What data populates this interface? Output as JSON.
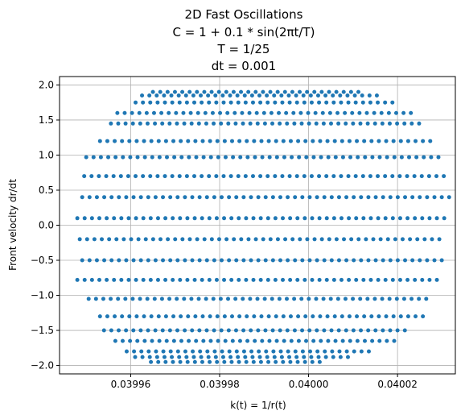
{
  "chart_data": {
    "type": "scatter",
    "title_lines": [
      "2D Fast Oscillations",
      "C = 1 + 0.1 * sin(2πt/T)",
      "T = 1/25",
      "dt = 0.001"
    ],
    "xlabel": "k(t) = 1/r(t)",
    "ylabel": "Front velocity dr/dt",
    "xlim": [
      0.039944,
      0.040033
    ],
    "ylim": [
      -2.12,
      2.12
    ],
    "x_ticks": [
      0.03996,
      0.03998,
      0.04,
      0.04002
    ],
    "x_tick_labels": [
      "0.03996",
      "0.03998",
      "0.04000",
      "0.04002"
    ],
    "y_ticks": [
      -2.0,
      -1.5,
      -1.0,
      -0.5,
      0.0,
      0.5,
      1.0,
      1.5,
      2.0
    ],
    "y_tick_labels": [
      "−2.0",
      "−1.5",
      "−1.0",
      "−0.5",
      "0.0",
      "0.5",
      "1.0",
      "1.5",
      "2.0"
    ],
    "grid": true,
    "marker_color": "#1f77b4",
    "bands": [
      {
        "y": 1.9,
        "x_min": 0.039965,
        "x_max": 0.040012
      },
      {
        "y": 1.85,
        "x_min": 0.039962,
        "x_max": 0.040016
      },
      {
        "y": 1.75,
        "x_min": 0.03996,
        "x_max": 0.04002
      },
      {
        "y": 1.6,
        "x_min": 0.039957,
        "x_max": 0.040023
      },
      {
        "y": 1.45,
        "x_min": 0.039955,
        "x_max": 0.040025
      },
      {
        "y": 1.2,
        "x_min": 0.039952,
        "x_max": 0.040028
      },
      {
        "y": 0.97,
        "x_min": 0.03995,
        "x_max": 0.04003
      },
      {
        "y": 0.7,
        "x_min": 0.039949,
        "x_max": 0.040031
      },
      {
        "y": 0.4,
        "x_min": 0.039948,
        "x_max": 0.040032
      },
      {
        "y": 0.1,
        "x_min": 0.039948,
        "x_max": 0.040032
      },
      {
        "y": -0.2,
        "x_min": 0.039948,
        "x_max": 0.040031
      },
      {
        "y": -0.5,
        "x_min": 0.039948,
        "x_max": 0.04003
      },
      {
        "y": -0.78,
        "x_min": 0.039948,
        "x_max": 0.040029
      },
      {
        "y": -1.05,
        "x_min": 0.03995,
        "x_max": 0.040028
      },
      {
        "y": -1.3,
        "x_min": 0.039952,
        "x_max": 0.040026
      },
      {
        "y": -1.5,
        "x_min": 0.039954,
        "x_max": 0.040023
      },
      {
        "y": -1.65,
        "x_min": 0.039956,
        "x_max": 0.04002
      },
      {
        "y": -1.8,
        "x_min": 0.039958,
        "x_max": 0.040014
      },
      {
        "y": -1.88,
        "x_min": 0.039961,
        "x_max": 0.04001
      },
      {
        "y": -1.95,
        "x_min": 0.039964,
        "x_max": 0.040004
      }
    ]
  }
}
